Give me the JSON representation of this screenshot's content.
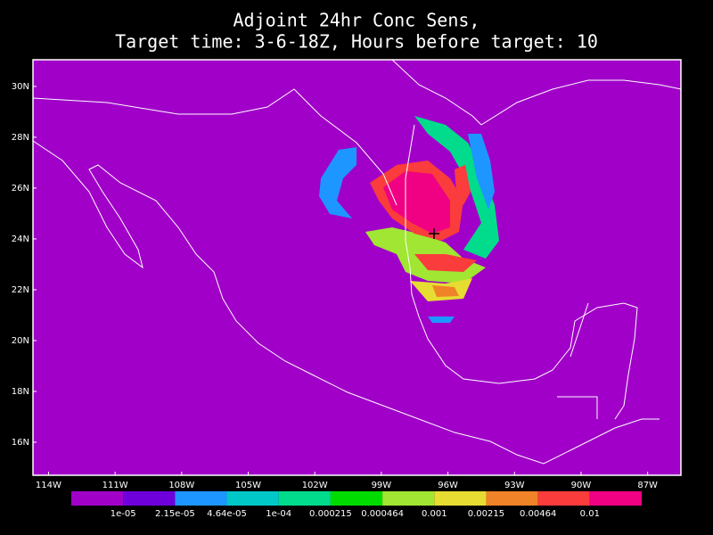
{
  "chart_data": {
    "type": "map",
    "title": [
      "Adjoint 24hr Conc Sens,",
      "Target time: 3-6-18Z, Hours before target: 10"
    ],
    "background": "#a000c8",
    "xlim": [
      -114.7,
      -85.5
    ],
    "ylim": [
      14.7,
      31.05
    ],
    "xticks": [
      {
        "value": -114,
        "label": "114W"
      },
      {
        "value": -111,
        "label": "111W"
      },
      {
        "value": -108,
        "label": "108W"
      },
      {
        "value": -105,
        "label": "105W"
      },
      {
        "value": -102,
        "label": "102W"
      },
      {
        "value": -99,
        "label": "99W"
      },
      {
        "value": -96,
        "label": "96W"
      },
      {
        "value": -93,
        "label": "93W"
      },
      {
        "value": -90,
        "label": "90W"
      },
      {
        "value": -87,
        "label": "87W"
      }
    ],
    "yticks": [
      {
        "value": 30,
        "label": "30N"
      },
      {
        "value": 28,
        "label": "28N"
      },
      {
        "value": 26,
        "label": "26N"
      },
      {
        "value": 24,
        "label": "24N"
      },
      {
        "value": 22,
        "label": "22N"
      },
      {
        "value": 20,
        "label": "20N"
      },
      {
        "value": 18,
        "label": "18N"
      },
      {
        "value": 16,
        "label": "16N"
      }
    ],
    "colorbar": {
      "colors": [
        "#a000c8",
        "#6e00dc",
        "#1e96ff",
        "#00c8c8",
        "#00dc8c",
        "#00dc00",
        "#a0e632",
        "#e6dc32",
        "#f08228",
        "#fa3c3c",
        "#f00082"
      ],
      "levels": [
        {
          "value": 1e-05,
          "label": "1e-05"
        },
        {
          "value": 2.15e-05,
          "label": "2.15e-05"
        },
        {
          "value": 4.64e-05,
          "label": "4.64e-05"
        },
        {
          "value": 0.0001,
          "label": "1e-04"
        },
        0.000215,
        0.000464,
        0.001,
        0.00215,
        0.00464,
        0.01
      ]
    }
  }
}
